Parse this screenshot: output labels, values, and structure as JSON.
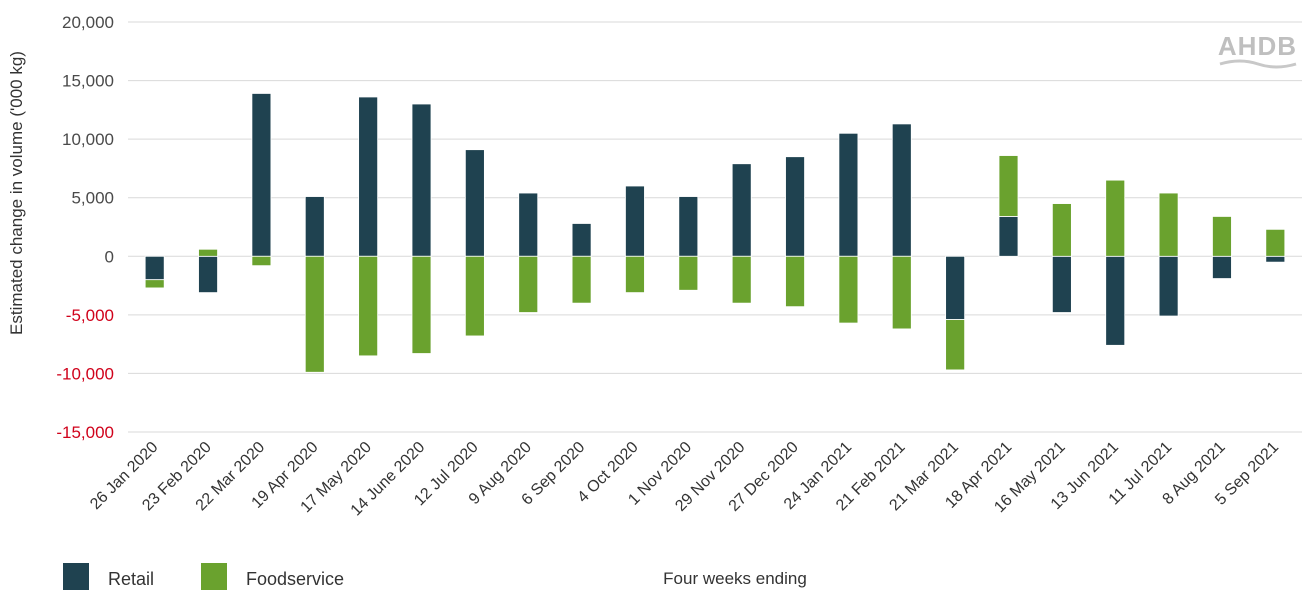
{
  "chart_data": {
    "type": "bar",
    "stacked": true,
    "logo": "AHDB",
    "ylabel": "Estimated change in volume ('000 kg)",
    "xlabel": "Four weeks ending",
    "ylim": [
      -15000,
      20000
    ],
    "yticks": [
      20000,
      15000,
      10000,
      5000,
      0,
      -5000,
      -10000,
      -15000
    ],
    "ytick_labels": [
      "20,000",
      "15,000",
      "10,000",
      "5,000",
      "0",
      "-5,000",
      "-10,000",
      "-15,000"
    ],
    "grid": true,
    "legend_position": "bottom-left",
    "categories": [
      "26 Jan 2020",
      "23 Feb 2020",
      "22 Mar 2020",
      "19 Apr 2020",
      "17 May 2020",
      "14 June 2020",
      "12 Jul 2020",
      "9 Aug 2020",
      "6 Sep 2020",
      "4 Oct 2020",
      "1 Nov 2020",
      "29 Nov 2020",
      "27 Dec 2020",
      "24 Jan 2021",
      "21 Feb 2021",
      "21 Mar 2021",
      "18 Apr 2021",
      "16 May 2021",
      "13 Jun 2021",
      "11 Jul 2021",
      "8 Aug 2021",
      "5 Sep 2021"
    ],
    "series": [
      {
        "name": "Retail",
        "color": "#1f4250",
        "values": [
          -2000,
          -3100,
          13900,
          5100,
          13600,
          13000,
          9100,
          5400,
          2800,
          6000,
          5100,
          7900,
          8500,
          10500,
          11300,
          -5400,
          3400,
          -4800,
          -7600,
          -5100,
          -1900,
          -500
        ]
      },
      {
        "name": "Foodservice",
        "color": "#6aa22e",
        "values": [
          -700,
          600,
          -800,
          -9900,
          -8500,
          -8300,
          -6800,
          -4800,
          -4000,
          -3100,
          -2900,
          -4000,
          -4300,
          -5700,
          -6200,
          -4300,
          5200,
          4500,
          6500,
          5400,
          3400,
          2300
        ]
      }
    ]
  }
}
